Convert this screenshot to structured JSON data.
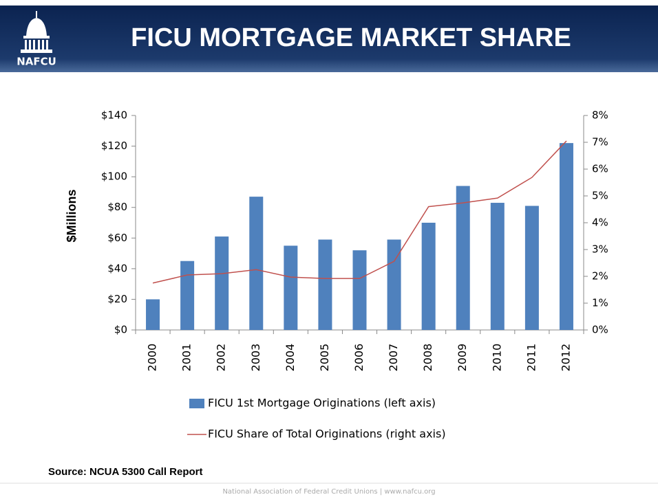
{
  "header": {
    "logo": "NAFCU",
    "title": "FICU MORTGAGE MARKET SHARE"
  },
  "chart_data": {
    "type": "combo",
    "y_label": "$Millions",
    "categories": [
      "2000",
      "2001",
      "2002",
      "2003",
      "2004",
      "2005",
      "2006",
      "2007",
      "2008",
      "2009",
      "2010",
      "2011",
      "2012"
    ],
    "series": [
      {
        "name": "FICU 1st Mortgage Originations (left axis)",
        "type": "bar",
        "color": "#4f81bd",
        "values": [
          20,
          45,
          61,
          87,
          55,
          59,
          52,
          59,
          70,
          94,
          83,
          81,
          122
        ]
      },
      {
        "name": "FICU Share of Total Originations (right axis)",
        "type": "line",
        "axis": "y2",
        "color": "#c0504d",
        "values": [
          1.75,
          2.05,
          2.1,
          2.25,
          1.97,
          1.92,
          1.92,
          2.56,
          4.6,
          4.74,
          4.92,
          5.69,
          7.05
        ]
      }
    ],
    "ylim": [
      0,
      140
    ],
    "yticks": [
      {
        "value": 0,
        "label": "$0"
      },
      {
        "value": 20,
        "label": "$20"
      },
      {
        "value": 40,
        "label": "$40"
      },
      {
        "value": 60,
        "label": "$60"
      },
      {
        "value": 80,
        "label": "$80"
      },
      {
        "value": 100,
        "label": "$100"
      },
      {
        "value": 120,
        "label": "$120"
      },
      {
        "value": 140,
        "label": "$140"
      }
    ],
    "y2lim": [
      0,
      8
    ],
    "y2ticks": [
      {
        "value": 0,
        "label": "0%"
      },
      {
        "value": 1,
        "label": "1%"
      },
      {
        "value": 2,
        "label": "2%"
      },
      {
        "value": 3,
        "label": "3%"
      },
      {
        "value": 4,
        "label": "4%"
      },
      {
        "value": 5,
        "label": "5%"
      },
      {
        "value": 6,
        "label": "6%"
      },
      {
        "value": 7,
        "label": "7%"
      },
      {
        "value": 8,
        "label": "8%"
      }
    ],
    "grid": false
  },
  "source": "Source: NCUA 5300  Call Report",
  "footer": "National Association of Federal Credit Unions  |  www.nafcu.org"
}
